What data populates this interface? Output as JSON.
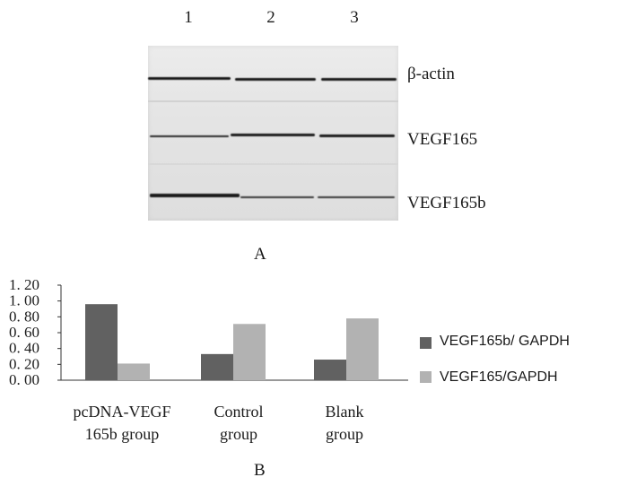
{
  "panel_a": {
    "lanes": [
      "1",
      "2",
      "3"
    ],
    "bands": [
      {
        "name": "β-actin"
      },
      {
        "name": "VEGF165"
      },
      {
        "name": "VEGF165b"
      }
    ],
    "label": "A"
  },
  "panel_b": {
    "label": "B",
    "legend": {
      "vegf165b": "VEGF165b/ GAPDH",
      "vegf165": "VEGF165/GAPDH"
    },
    "category_lines": [
      [
        "pcDNA-VEGF",
        "165b group"
      ],
      [
        "Control",
        "group"
      ],
      [
        "Blank",
        "group"
      ]
    ]
  },
  "colors": {
    "series_dark": "#616161",
    "series_light": "#b2b2b2",
    "band": "#1b1b1b"
  },
  "chart_data": {
    "type": "bar",
    "categories": [
      "pcDNA-VEGF 165b group",
      "Control group",
      "Blank group"
    ],
    "series": [
      {
        "name": "VEGF165b/ GAPDH",
        "values": [
          0.96,
          0.33,
          0.26
        ]
      },
      {
        "name": "VEGF165/GAPDH",
        "values": [
          0.21,
          0.71,
          0.78
        ]
      }
    ],
    "y_ticks": [
      "1. 20",
      "1. 00",
      "0. 80",
      "0. 60",
      "0. 40",
      "0. 20",
      "0. 00"
    ],
    "ylim": [
      0,
      1.2
    ],
    "title": "",
    "xlabel": "",
    "ylabel": "",
    "legend_position": "right",
    "grid": false
  }
}
